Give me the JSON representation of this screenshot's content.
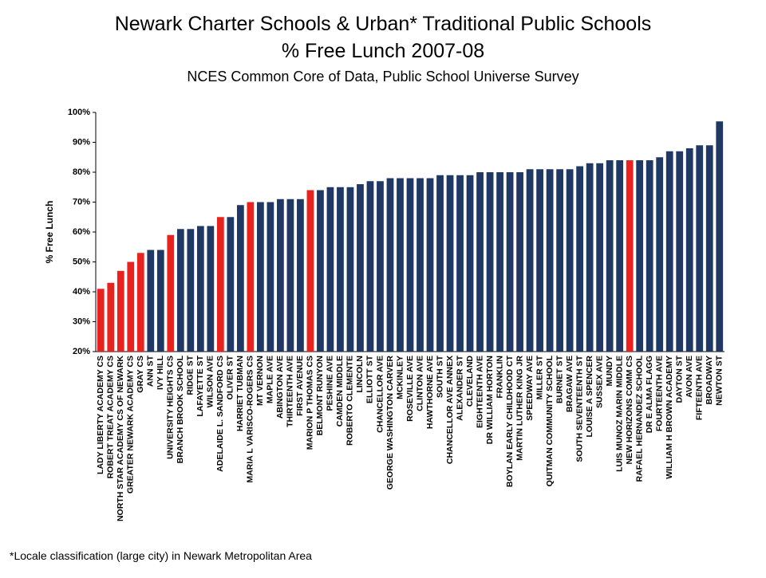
{
  "chart_data": {
    "type": "bar",
    "title": [
      "Newark Charter Schools & Urban* Traditional Public Schools",
      "% Free Lunch 2007-08"
    ],
    "subtitle": "NCES Common Core of Data, Public School Universe Survey",
    "y_label": "% Free Lunch",
    "footnote": "*Locale classification (large city) in Newark Metropolitan Area",
    "categories": [
      "LADY LIBERTY ACADEMY CS",
      "ROBERT TREAT ACADEMY CS",
      "NORTH STAR ACADEMY CS OF NEWARK",
      "GREATER NEWARK ACADEMY CS",
      "GRAY CS",
      "ANN ST",
      "IVY HILL",
      "UNIVERSITY HEIGHTS CS",
      "BRANCH BROOK SCHOOL",
      "RIDGE ST",
      "LAFAYETTE ST",
      "WILSON AVE",
      "ADELAIDE L. SANDFORD CS",
      "OLIVER ST",
      "HARRIET TUBMAN",
      "MARIA L VARISCO-ROGERS CS",
      "MT VERNON",
      "MAPLE AVE",
      "ABINGTON AVE",
      "THIRTEENTH AVE",
      "FIRST AVENUE",
      "MARION P THOMAS CS",
      "BELMONT RUNYON",
      "PESHINE AVE",
      "CAMDEN MIDDLE",
      "ROBERTO CLEMENTE",
      "LINCOLN",
      "ELLIOTT ST",
      "CHANCELLOR AVE",
      "GEORGE WASHINGTON CARVER",
      "MCKINLEY",
      "ROSEVILLE AVE",
      "CLINTON AVE",
      "HAWTHORNE AVE",
      "SOUTH ST",
      "CHANCELLOR AVE ANNEX",
      "ALEXANDER ST",
      "CLEVELAND",
      "EIGHTEENTH AVE",
      "DR WILLIAM HORTON",
      "FRANKLIN",
      "BOYLAN EARLY CHILDHOOD CT",
      "MARTIN LUTHER KING JR",
      "SPEEDWAY AVE",
      "MILLER ST",
      "QUITMAN COMMUNITY SCHOOL",
      "BURNET ST",
      "BRAGAW AVE",
      "SOUTH SEVENTEENTH ST",
      "LOUISE A SPENCER",
      "SUSSEX AVE",
      "MUNDY",
      "LUIS MUNOZ MARIN MIDDLE",
      "NEW HORIZONS COMM CS",
      "RAFAEL HERNANDEZ SCHOOL",
      "DR E ALMA FLAGG",
      "FOURTEENTH AVE",
      "WILLIAM H BROWN ACADEMY",
      "DAYTON ST",
      "AVON AVE",
      "FIFTEENTH AVE",
      "BROADWAY",
      "NEWTON ST"
    ],
    "values": [
      41,
      43,
      47,
      50,
      53,
      54,
      54,
      59,
      61,
      61,
      62,
      62,
      65,
      65,
      69,
      70,
      70,
      70,
      71,
      71,
      71,
      74,
      74,
      75,
      75,
      75,
      76,
      77,
      77,
      78,
      78,
      78,
      78,
      78,
      79,
      79,
      79,
      79,
      80,
      80,
      80,
      80,
      80,
      81,
      81,
      81,
      81,
      81,
      82,
      83,
      83,
      84,
      84,
      84,
      84,
      84,
      85,
      87,
      87,
      88,
      89,
      89,
      97
    ],
    "colors": [
      "#e8231f",
      "#e8231f",
      "#e8231f",
      "#e8231f",
      "#e8231f",
      "#1f3864",
      "#1f3864",
      "#e8231f",
      "#1f3864",
      "#1f3864",
      "#1f3864",
      "#1f3864",
      "#e8231f",
      "#1f3864",
      "#1f3864",
      "#e8231f",
      "#1f3864",
      "#1f3864",
      "#1f3864",
      "#1f3864",
      "#1f3864",
      "#e8231f",
      "#1f3864",
      "#1f3864",
      "#1f3864",
      "#1f3864",
      "#1f3864",
      "#1f3864",
      "#1f3864",
      "#1f3864",
      "#1f3864",
      "#1f3864",
      "#1f3864",
      "#1f3864",
      "#1f3864",
      "#1f3864",
      "#1f3864",
      "#1f3864",
      "#1f3864",
      "#1f3864",
      "#1f3864",
      "#1f3864",
      "#1f3864",
      "#1f3864",
      "#1f3864",
      "#1f3864",
      "#1f3864",
      "#1f3864",
      "#1f3864",
      "#1f3864",
      "#1f3864",
      "#1f3864",
      "#1f3864",
      "#e8231f",
      "#1f3864",
      "#1f3864",
      "#1f3864",
      "#1f3864",
      "#1f3864",
      "#1f3864",
      "#1f3864",
      "#1f3864",
      "#1f3864"
    ],
    "ylim": [
      20,
      100
    ],
    "yticks": [
      {
        "value": 20,
        "label": "20%"
      },
      {
        "value": 30,
        "label": "30%"
      },
      {
        "value": 40,
        "label": "40%"
      },
      {
        "value": 50,
        "label": "50%"
      },
      {
        "value": 60,
        "label": "60%"
      },
      {
        "value": 70,
        "label": "70%"
      },
      {
        "value": 80,
        "label": "80%"
      },
      {
        "value": 90,
        "label": "90%"
      },
      {
        "value": 100,
        "label": "100%"
      }
    ]
  }
}
